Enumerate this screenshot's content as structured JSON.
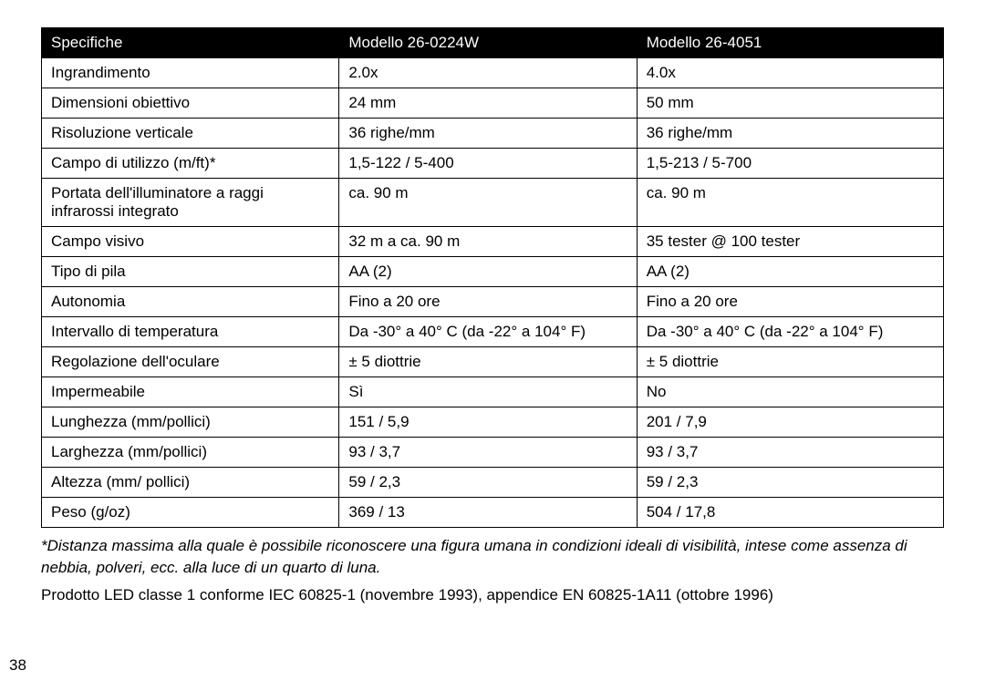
{
  "table": {
    "headers": [
      "Specifiche",
      "Modello 26-0224W",
      "Modello 26-4051"
    ],
    "rows": [
      [
        "Ingrandimento",
        "2.0x",
        "4.0x"
      ],
      [
        "Dimensioni obiettivo",
        "24 mm",
        "50 mm"
      ],
      [
        "Risoluzione verticale",
        "36 righe/mm",
        "36 righe/mm"
      ],
      [
        "Campo di utilizzo (m/ft)*",
        "1,5-122 / 5-400",
        "1,5-213 / 5-700"
      ],
      [
        "Portata dell'illuminatore a raggi infrarossi integrato",
        "ca. 90 m",
        "ca. 90 m"
      ],
      [
        "Campo visivo",
        "32 m a ca. 90 m",
        "35 tester @ 100 tester"
      ],
      [
        "Tipo di pila",
        "AA (2)",
        "AA (2)"
      ],
      [
        "Autonomia",
        "Fino a 20 ore",
        "Fino a 20 ore"
      ],
      [
        "Intervallo di temperatura",
        "Da -30° a 40° C (da -22° a 104° F)",
        "Da -30° a 40° C (da -22° a 104° F)"
      ],
      [
        "Regolazione dell'oculare",
        "± 5 diottrie",
        "± 5 diottrie"
      ],
      [
        "Impermeabile",
        "Sì",
        "No"
      ],
      [
        "Lunghezza (mm/pollici)",
        "151 / 5,9",
        "201 / 7,9"
      ],
      [
        "Larghezza (mm/pollici)",
        "93 / 3,7",
        "93 / 3,7"
      ],
      [
        "Altezza (mm/ pollici)",
        "59 / 2,3",
        "59 / 2,3"
      ],
      [
        "Peso (g/oz)",
        "369 / 13",
        "504 / 17,8"
      ]
    ]
  },
  "footnote": "*Distanza massima alla quale è possibile riconoscere una figura umana in condizioni ideali di visibilità, intese come assenza di nebbia, polveri, ecc. alla luce di un quarto di luna.",
  "note2": "Prodotto LED classe 1 conforme IEC 60825-1 (novembre 1993), appendice EN 60825-1A11 (ottobre 1996)",
  "page_number": "38"
}
